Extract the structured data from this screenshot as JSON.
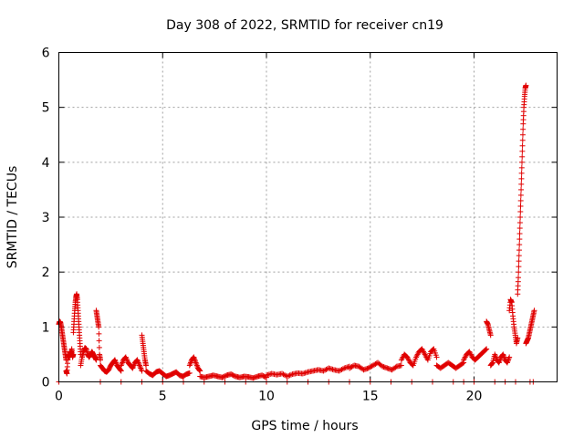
{
  "chart_data": {
    "type": "scatter",
    "title": "Day 308 of 2022, SRMTID for receiver cn19",
    "xlabel": "GPS time / hours",
    "ylabel": "SRMTID / TECUs",
    "xlim": [
      0,
      24
    ],
    "ylim": [
      0,
      6
    ],
    "xticks": [
      0,
      5,
      10,
      15,
      20
    ],
    "yticks": [
      0,
      1,
      2,
      3,
      4,
      5,
      6
    ],
    "grid": true,
    "marker": "+",
    "color": "#e00000",
    "series": [
      {
        "name": "SRMTID",
        "segments": [
          {
            "x0": 0.0,
            "x1": 0.35,
            "ys": [
              1.05,
              1.1,
              1.08,
              1.0,
              0.9,
              0.8,
              0.7,
              0.6,
              0.5,
              0.4
            ]
          },
          {
            "x0": 0.35,
            "x1": 0.7,
            "ys": [
              0.2,
              0.15,
              0.4,
              0.5,
              0.45,
              0.55,
              0.5,
              0.6,
              0.45,
              0.5
            ]
          },
          {
            "x0": 0.7,
            "x1": 1.05,
            "ys": [
              0.9,
              1.1,
              1.3,
              1.45,
              1.55,
              1.6,
              1.5,
              1.3,
              1.1,
              0.9,
              0.7,
              0.5
            ]
          },
          {
            "x0": 1.05,
            "x1": 1.8,
            "ys": [
              0.3,
              0.45,
              0.55,
              0.62,
              0.6,
              0.5,
              0.45,
              0.5,
              0.55,
              0.5,
              0.45,
              0.4
            ]
          },
          {
            "x0": 1.8,
            "x1": 2.0,
            "ys": [
              1.3,
              1.2,
              1.1,
              1.0,
              0.5,
              0.4
            ]
          },
          {
            "x0": 2.0,
            "x1": 3.0,
            "ys": [
              0.3,
              0.25,
              0.2,
              0.18,
              0.22,
              0.3,
              0.35,
              0.4,
              0.3,
              0.25,
              0.2
            ]
          },
          {
            "x0": 3.0,
            "x1": 4.0,
            "ys": [
              0.3,
              0.4,
              0.45,
              0.35,
              0.3,
              0.25,
              0.35,
              0.4,
              0.3,
              0.2
            ]
          },
          {
            "x0": 4.0,
            "x1": 4.2,
            "ys": [
              0.85,
              0.7,
              0.55,
              0.4,
              0.3
            ]
          },
          {
            "x0": 4.2,
            "x1": 6.3,
            "ys": [
              0.2,
              0.15,
              0.12,
              0.18,
              0.2,
              0.15,
              0.1,
              0.12,
              0.15,
              0.18,
              0.12,
              0.1,
              0.14,
              0.16
            ]
          },
          {
            "x0": 6.3,
            "x1": 6.8,
            "ys": [
              0.3,
              0.4,
              0.45,
              0.35,
              0.25,
              0.2
            ]
          },
          {
            "x0": 6.8,
            "x1": 10.0,
            "ys": [
              0.1,
              0.08,
              0.1,
              0.12,
              0.1,
              0.08,
              0.12,
              0.14,
              0.1,
              0.08,
              0.1,
              0.09,
              0.07,
              0.1,
              0.12,
              0.08
            ]
          },
          {
            "x0": 10.0,
            "x1": 14.0,
            "ys": [
              0.12,
              0.15,
              0.13,
              0.15,
              0.1,
              0.14,
              0.16,
              0.15,
              0.18,
              0.2,
              0.22,
              0.2,
              0.25,
              0.22,
              0.2,
              0.25,
              0.28
            ]
          },
          {
            "x0": 14.0,
            "x1": 16.5,
            "ys": [
              0.25,
              0.3,
              0.28,
              0.22,
              0.25,
              0.3,
              0.35,
              0.28,
              0.25,
              0.22,
              0.28,
              0.3
            ]
          },
          {
            "x0": 16.5,
            "x1": 18.2,
            "ys": [
              0.4,
              0.5,
              0.45,
              0.35,
              0.3,
              0.45,
              0.55,
              0.6,
              0.5,
              0.4,
              0.55,
              0.6,
              0.45
            ]
          },
          {
            "x0": 18.2,
            "x1": 19.5,
            "ys": [
              0.3,
              0.25,
              0.3,
              0.35,
              0.3,
              0.25,
              0.3,
              0.35
            ]
          },
          {
            "x0": 19.5,
            "x1": 20.6,
            "ys": [
              0.4,
              0.5,
              0.55,
              0.45,
              0.4,
              0.45,
              0.5,
              0.55,
              0.6
            ]
          },
          {
            "x0": 20.6,
            "x1": 20.8,
            "ys": [
              1.1,
              1.05,
              0.95,
              0.85
            ]
          },
          {
            "x0": 20.8,
            "x1": 21.7,
            "ys": [
              0.3,
              0.35,
              0.5,
              0.4,
              0.35,
              0.45,
              0.5,
              0.4,
              0.35,
              0.45
            ]
          },
          {
            "x0": 21.7,
            "x1": 22.1,
            "ys": [
              1.3,
              1.5,
              1.45,
              1.2,
              1.0,
              0.85,
              0.7,
              0.8
            ]
          },
          {
            "x0": 22.1,
            "x1": 22.5,
            "ys": [
              1.6,
              1.9,
              2.3,
              2.7,
              3.1,
              3.5,
              3.9,
              4.3,
              4.7,
              5.0,
              5.2,
              5.35,
              5.4
            ]
          },
          {
            "x0": 22.5,
            "x1": 22.9,
            "ys": [
              0.7,
              0.75,
              0.8,
              0.9,
              1.0,
              1.1,
              1.2,
              1.3
            ]
          }
        ],
        "near_zero_points_x": [
          0.0,
          2.0,
          3.0,
          4.0,
          5.0,
          6.0,
          7.0,
          8.0,
          9.0,
          10.0,
          11.0,
          12.0,
          13.0,
          14.0,
          15.0,
          16.0,
          17.0,
          18.0,
          19.0,
          19.5,
          20.0,
          21.0,
          21.5,
          22.0,
          22.7,
          22.85
        ]
      }
    ]
  }
}
